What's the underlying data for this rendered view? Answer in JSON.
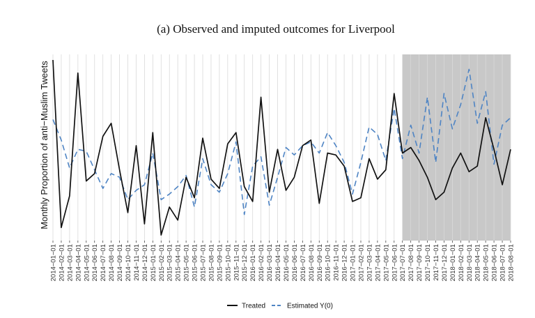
{
  "chart_data": {
    "type": "line",
    "title": "(a) Observed and imputed outcomes for Liverpool",
    "xlabel": "",
    "ylabel": "Monthly Proportion of anti−Muslim Tweets",
    "x": [
      "2014−01−01",
      "2014−02−01",
      "2014−03−01",
      "2014−04−01",
      "2014−05−01",
      "2014−06−01",
      "2014−07−01",
      "2014−08−01",
      "2014−09−01",
      "2014−10−01",
      "2014−11−01",
      "2014−12−01",
      "2015−01−01",
      "2015−02−01",
      "2015−03−01",
      "2015−04−01",
      "2015−05−01",
      "2015−06−01",
      "2015−07−01",
      "2015−08−01",
      "2015−09−01",
      "2015−10−01",
      "2015−11−01",
      "2015−12−01",
      "2016−01−01",
      "2016−02−01",
      "2016−03−01",
      "2016−04−01",
      "2016−05−01",
      "2016−06−01",
      "2016−07−01",
      "2016−08−01",
      "2016−09−01",
      "2016−10−01",
      "2016−11−01",
      "2016−12−01",
      "2017−01−01",
      "2017−02−01",
      "2017−03−01",
      "2017−04−01",
      "2017−05−01",
      "2017−06−01",
      "2017−07−01",
      "2017−08−01",
      "2017−09−01",
      "2017−10−01",
      "2017−11−01",
      "2017−12−01",
      "2018−01−01",
      "2018−02−01",
      "2018−03−01",
      "2018−04−01",
      "2018−05−01",
      "2018−06−01",
      "2018−07−01",
      "2018−08−01"
    ],
    "series": [
      {
        "name": "Treated",
        "color": "#111111",
        "dash": "solid",
        "values": [
          0.97,
          0.07,
          0.24,
          0.9,
          0.32,
          0.36,
          0.56,
          0.63,
          0.38,
          0.15,
          0.51,
          0.09,
          0.58,
          0.03,
          0.18,
          0.11,
          0.34,
          0.23,
          0.55,
          0.33,
          0.28,
          0.52,
          0.58,
          0.29,
          0.21,
          0.77,
          0.26,
          0.49,
          0.27,
          0.34,
          0.51,
          0.54,
          0.2,
          0.47,
          0.46,
          0.4,
          0.21,
          0.23,
          0.44,
          0.33,
          0.38,
          0.79,
          0.47,
          0.5,
          0.43,
          0.34,
          0.22,
          0.26,
          0.39,
          0.47,
          0.37,
          0.4,
          0.66,
          0.49,
          0.3,
          0.49
        ]
      },
      {
        "name": "Estimated Y(0)",
        "color": "#4e84c4",
        "dash": "dashed",
        "values": [
          0.65,
          0.54,
          0.39,
          0.49,
          0.48,
          0.38,
          0.28,
          0.36,
          0.34,
          0.22,
          0.27,
          0.3,
          0.47,
          0.22,
          0.25,
          0.29,
          0.35,
          0.18,
          0.44,
          0.3,
          0.26,
          0.36,
          0.53,
          0.14,
          0.4,
          0.45,
          0.19,
          0.34,
          0.5,
          0.46,
          0.51,
          0.53,
          0.47,
          0.58,
          0.51,
          0.42,
          0.25,
          0.42,
          0.61,
          0.57,
          0.43,
          0.71,
          0.44,
          0.62,
          0.47,
          0.77,
          0.42,
          0.79,
          0.6,
          0.73,
          0.92,
          0.63,
          0.8,
          0.41,
          0.62,
          0.66
        ]
      }
    ],
    "ylim": [
      0,
      1
    ],
    "shaded_region": {
      "from": "2017−07−01",
      "to": "2018−08−01",
      "color": "#c8c8c8"
    },
    "grid": "vertical",
    "legend": {
      "position": "bottom-center",
      "entries": [
        "Treated",
        "Estimated Y(0)"
      ]
    }
  }
}
